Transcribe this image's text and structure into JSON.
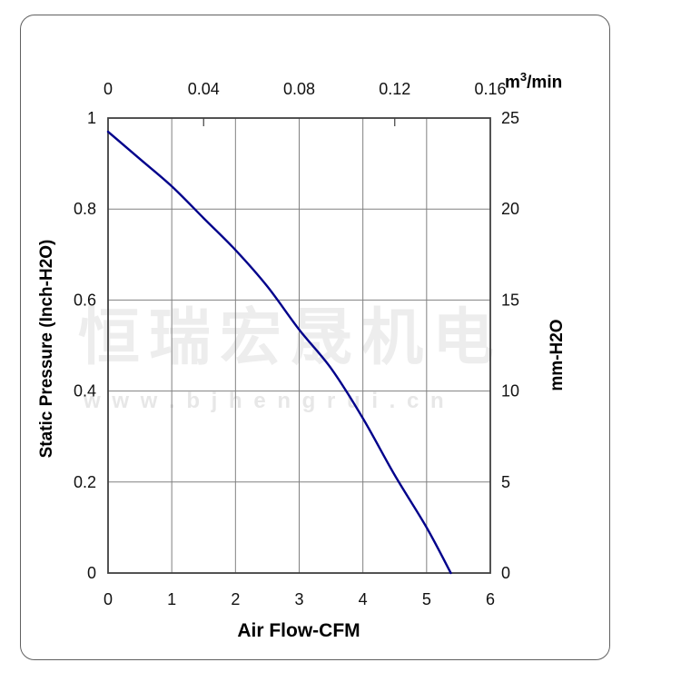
{
  "watermark": {
    "line1": "恒瑞宏晟机电",
    "line2": "w w w . b j h e n g r u i . c n"
  },
  "chart_data": {
    "type": "line",
    "title": "",
    "grid": true,
    "legend_position": "none",
    "colors": {
      "curve": "#00008B",
      "gridline": "#808080",
      "plot_border": "#404040"
    },
    "series": [
      {
        "name": "static-pressure-vs-airflow",
        "points": [
          [
            0,
            0.97
          ],
          [
            0.5,
            0.91
          ],
          [
            1.0,
            0.85
          ],
          [
            1.5,
            0.78
          ],
          [
            2.0,
            0.71
          ],
          [
            2.5,
            0.63
          ],
          [
            3.0,
            0.535
          ],
          [
            3.5,
            0.45
          ],
          [
            4.0,
            0.34
          ],
          [
            4.5,
            0.215
          ],
          [
            5.0,
            0.1
          ],
          [
            5.38,
            0.0
          ]
        ]
      }
    ],
    "axes": {
      "bottom": {
        "label": "Air Flow-CFM",
        "ticks": [
          "0",
          "1",
          "2",
          "3",
          "4",
          "5",
          "6"
        ],
        "range": [
          0,
          6
        ]
      },
      "top": {
        "unit_prefix": "m",
        "unit_sup": "3",
        "unit_suffix": "/min",
        "ticks": [
          "0",
          "0.04",
          "0.08",
          "0.12",
          "0.16"
        ],
        "range": [
          0,
          0.16
        ]
      },
      "left": {
        "label": "Static Pressure (Inch-H2O)",
        "ticks": [
          "1",
          "0.8",
          "0.6",
          "0.4",
          "0.2",
          "0"
        ],
        "range": [
          0,
          1
        ]
      },
      "right": {
        "label": "mm-H2O",
        "ticks": [
          "25",
          "20",
          "15",
          "10",
          "5",
          "0"
        ],
        "range": [
          0,
          25
        ]
      }
    }
  }
}
